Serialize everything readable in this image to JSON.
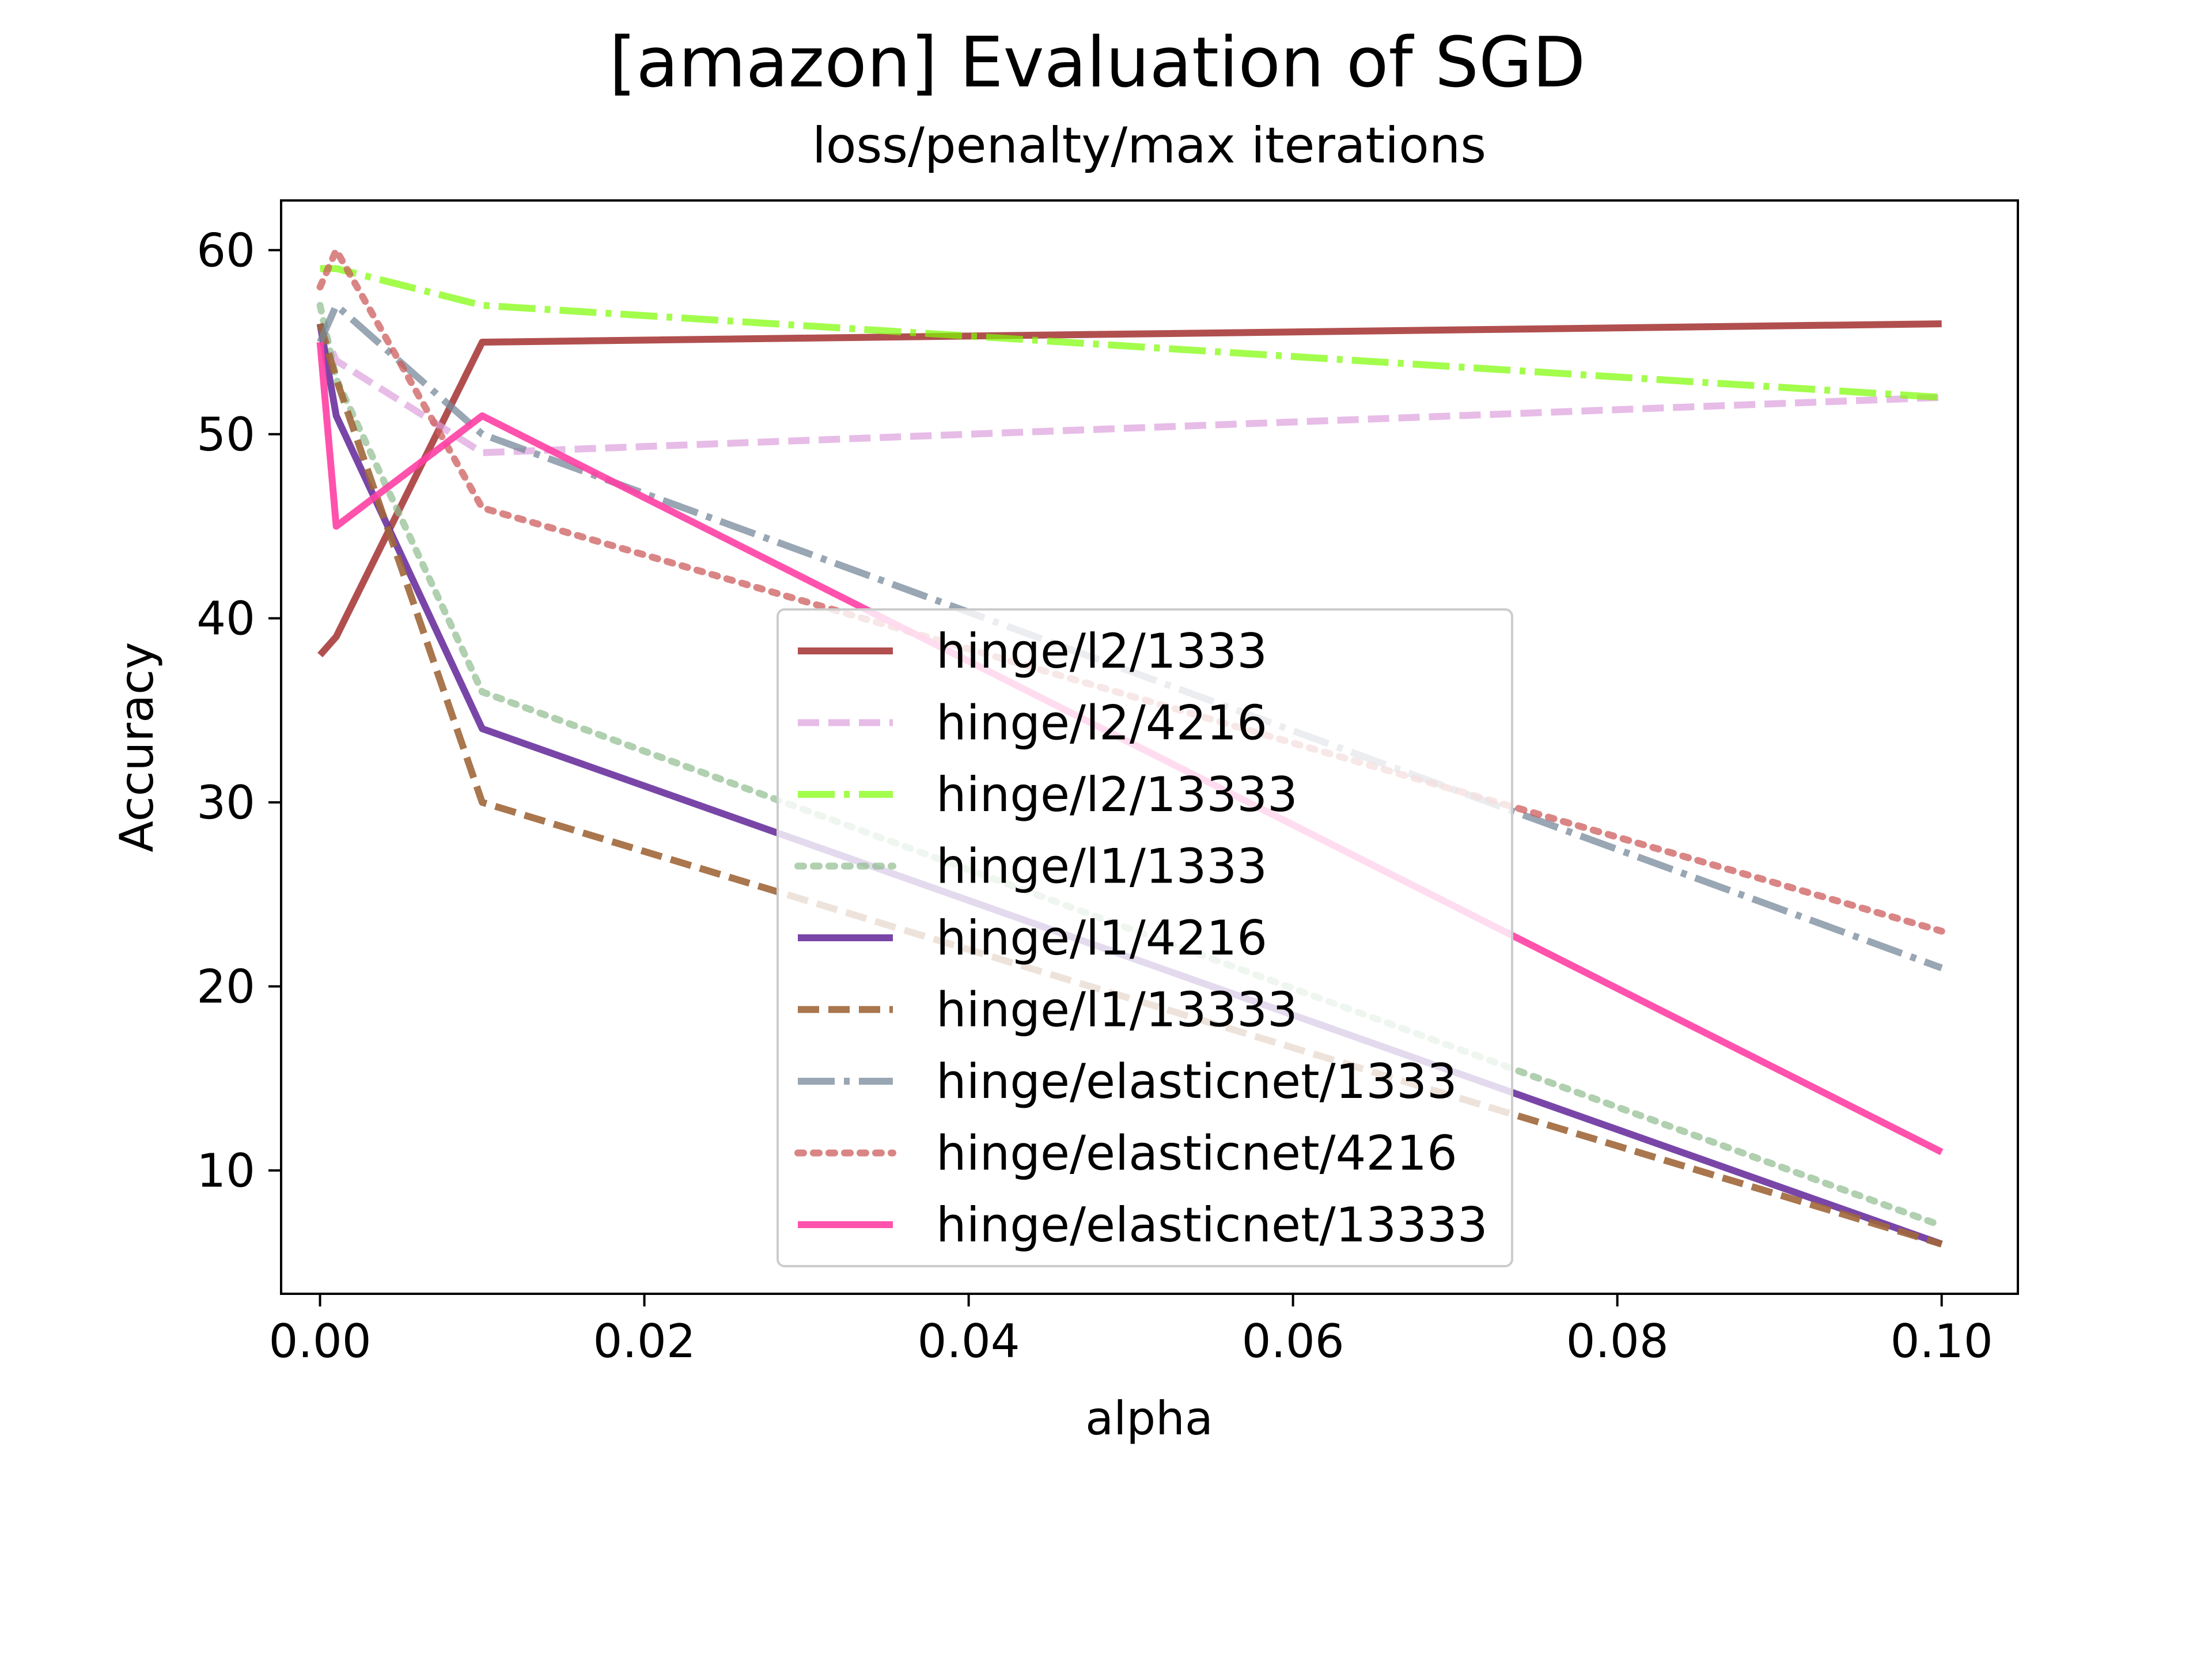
{
  "chart_data": {
    "type": "line",
    "title": "[amazon] Evaluation of SGD",
    "subtitle": "loss/penalty/max iterations",
    "xlabel": "alpha",
    "ylabel": "Accuracy",
    "xlim": [
      -0.0024,
      0.1047
    ],
    "ylim": [
      3.3,
      62.7
    ],
    "x_ticks": [
      0.0,
      0.02,
      0.04,
      0.06,
      0.08,
      0.1
    ],
    "x_tick_labels": [
      "0.00",
      "0.02",
      "0.04",
      "0.06",
      "0.08",
      "0.10"
    ],
    "y_ticks": [
      10,
      20,
      30,
      40,
      50,
      60
    ],
    "y_tick_labels": [
      "10",
      "20",
      "30",
      "40",
      "50",
      "60"
    ],
    "grid": false,
    "legend_position": "center",
    "x": [
      0.0,
      0.001,
      0.01,
      0.1
    ],
    "series": [
      {
        "name": "hinge/l2/1333",
        "values": [
          38,
          39,
          55,
          56
        ],
        "color": "#a83c3c",
        "dash": "solid",
        "alpha": 0.9
      },
      {
        "name": "hinge/l2/4216",
        "values": [
          56,
          54,
          49,
          52
        ],
        "color": "#dda0dd",
        "dash": "dashed",
        "alpha": 0.7
      },
      {
        "name": "hinge/l2/13333",
        "values": [
          59,
          59,
          57,
          52
        ],
        "color": "#7cfc00",
        "dash": "dashdot",
        "alpha": 0.7
      },
      {
        "name": "hinge/l1/1333",
        "values": [
          57,
          53,
          36,
          7
        ],
        "color": "#8fbc8f",
        "dash": "dotted",
        "alpha": 0.7
      },
      {
        "name": "hinge/l1/4216",
        "values": [
          56,
          51,
          34,
          6
        ],
        "color": "#6a329f",
        "dash": "solid",
        "alpha": 0.9
      },
      {
        "name": "hinge/l1/13333",
        "values": [
          56,
          53,
          30,
          6
        ],
        "color": "#a0673a",
        "dash": "dashed",
        "alpha": 0.9
      },
      {
        "name": "hinge/elasticnet/1333",
        "values": [
          55,
          57,
          50,
          21
        ],
        "color": "#778899",
        "dash": "dashdot",
        "alpha": 0.75
      },
      {
        "name": "hinge/elasticnet/4216",
        "values": [
          58,
          60,
          46,
          23
        ],
        "color": "#cd5c5c",
        "dash": "dotted",
        "alpha": 0.75
      },
      {
        "name": "hinge/elasticnet/13333",
        "values": [
          55,
          45,
          51,
          11
        ],
        "color": "#ff3fa4",
        "dash": "solid",
        "alpha": 0.9
      }
    ]
  }
}
